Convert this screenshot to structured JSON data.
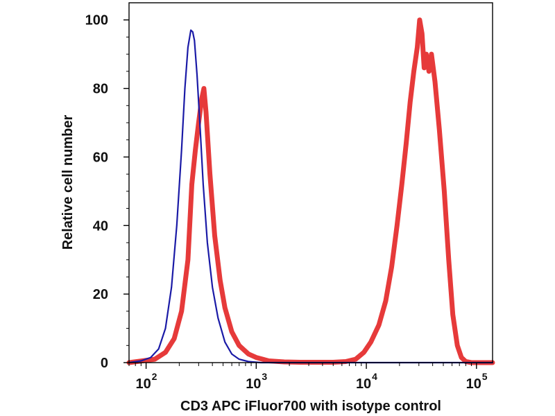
{
  "chart_data": {
    "type": "line",
    "title": "",
    "xlabel": "CD3 APC iFluor700 with isotype control",
    "ylabel": "Relative cell number",
    "xscale": "log",
    "xlim": [
      70,
      140000
    ],
    "ylim": [
      0,
      105
    ],
    "grid": false,
    "yticks": [
      0,
      20,
      40,
      60,
      80,
      100
    ],
    "ytick_labels": [
      "0",
      "20",
      "40",
      "60",
      "80",
      "100"
    ],
    "xticks": [
      100,
      1000,
      10000,
      100000
    ],
    "xtick_labels": [
      {
        "base": "10",
        "exp": "2"
      },
      {
        "base": "10",
        "exp": "3"
      },
      {
        "base": "10",
        "exp": "4"
      },
      {
        "base": "10",
        "exp": "5"
      }
    ],
    "series": [
      {
        "name": "Isotype control",
        "color": "#1a1aa6",
        "x": [
          70,
          90,
          110,
          130,
          150,
          170,
          190,
          210,
          225,
          240,
          255,
          265,
          275,
          290,
          310,
          330,
          360,
          400,
          450,
          520,
          600,
          700,
          850,
          1100,
          140000
        ],
        "y": [
          0,
          0.5,
          1.5,
          4,
          10,
          22,
          40,
          62,
          80,
          92,
          97,
          96.5,
          94,
          84,
          68,
          52,
          35,
          22,
          13,
          6,
          2.5,
          1,
          0.3,
          0,
          0
        ]
      },
      {
        "name": "CD3 APC iFluor700",
        "color": "#e63a3a",
        "x": [
          70,
          120,
          150,
          180,
          210,
          240,
          260,
          280,
          300,
          320,
          335,
          350,
          380,
          420,
          470,
          520,
          600,
          700,
          850,
          1000,
          1300,
          1800,
          2500,
          3500,
          5000,
          6500,
          8000,
          9500,
          11000,
          13000,
          15000,
          17000,
          19000,
          21000,
          23000,
          25000,
          27000,
          29000,
          30500,
          32000,
          33500,
          35000,
          37000,
          39000,
          42000,
          46000,
          51000,
          56000,
          61000,
          67000,
          73000,
          80000,
          90000,
          140000
        ],
        "y": [
          0,
          1,
          3,
          7,
          15,
          30,
          52,
          62,
          70,
          77,
          80,
          73,
          55,
          37,
          24,
          16,
          9,
          5,
          2.5,
          1.5,
          0.5,
          0.2,
          0.1,
          0.1,
          0.1,
          0.3,
          1,
          3,
          6,
          11,
          18,
          28,
          40,
          52,
          64,
          76,
          85,
          92,
          100,
          96,
          86,
          90,
          85,
          90,
          82,
          68,
          50,
          30,
          14,
          5,
          1.5,
          0.3,
          0,
          0
        ]
      }
    ]
  }
}
